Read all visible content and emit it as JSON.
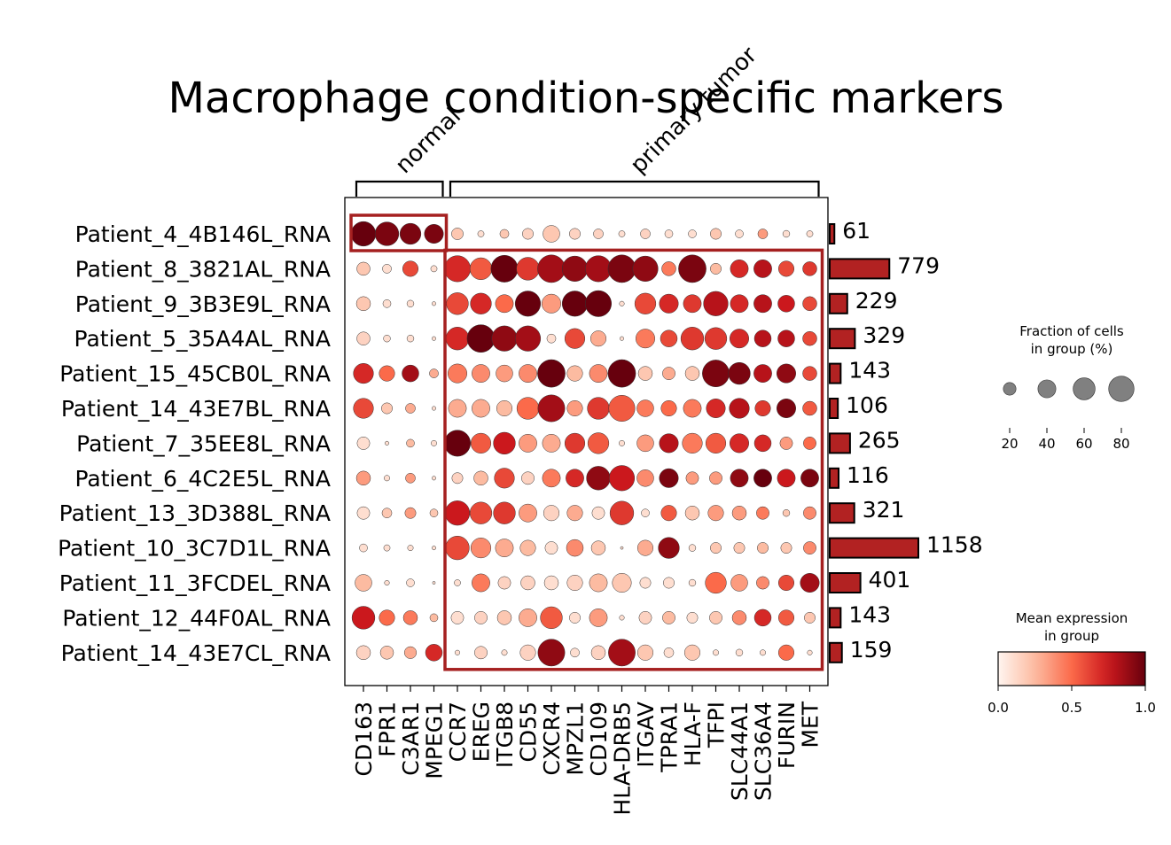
{
  "chart_data": {
    "type": "dotplot",
    "title": "Macrophage condition-specific markers",
    "groups": [
      {
        "label": "normal",
        "genes": [
          "CD163",
          "FPR1",
          "C3AR1",
          "MPEG1"
        ]
      },
      {
        "label": "primary tumor",
        "genes": [
          "CCR7",
          "EREG",
          "ITGB8",
          "CD55",
          "CXCR4",
          "MPZL1",
          "CD109",
          "HLA-DRB5",
          "ITGAV",
          "TPRA1",
          "HLA-F",
          "TFPI",
          "SLC44A1",
          "SLC36A4",
          "FURIN",
          "MET"
        ]
      }
    ],
    "genes": [
      "CD163",
      "FPR1",
      "C3AR1",
      "MPEG1",
      "CCR7",
      "EREG",
      "ITGB8",
      "CD55",
      "CXCR4",
      "MPZL1",
      "CD109",
      "HLA-DRB5",
      "ITGAV",
      "TPRA1",
      "HLA-F",
      "TFPI",
      "SLC44A1",
      "SLC36A4",
      "FURIN",
      "MET"
    ],
    "patients": [
      "Patient_4_4B146L_RNA",
      "Patient_8_3821AL_RNA",
      "Patient_9_3B3E9L_RNA",
      "Patient_5_35A4AL_RNA",
      "Patient_15_45CB0L_RNA",
      "Patient_14_43E7BL_RNA",
      "Patient_7_35EE8L_RNA",
      "Patient_6_4C2E5L_RNA",
      "Patient_13_3D388L_RNA",
      "Patient_10_3C7D1L_RNA",
      "Patient_11_3FCDEL_RNA",
      "Patient_12_44F0AL_RNA",
      "Patient_14_43E7CL_RNA"
    ],
    "cell_counts": [
      61,
      779,
      229,
      329,
      143,
      106,
      265,
      116,
      321,
      1158,
      401,
      143,
      159
    ],
    "fraction_pct": [
      [
        75,
        70,
        55,
        45,
        17,
        5,
        10,
        15,
        35,
        15,
        12,
        5,
        12,
        8,
        8,
        15,
        8,
        12,
        6,
        5
      ],
      [
        22,
        10,
        30,
        5,
        85,
        60,
        90,
        65,
        95,
        80,
        85,
        95,
        80,
        25,
        95,
        15,
        40,
        40,
        30,
        25
      ],
      [
        25,
        8,
        6,
        2,
        60,
        55,
        40,
        80,
        45,
        80,
        85,
        3,
        55,
        45,
        40,
        75,
        40,
        40,
        35,
        25
      ],
      [
        22,
        6,
        6,
        2,
        65,
        95,
        80,
        80,
        10,
        50,
        30,
        2,
        45,
        35,
        65,
        60,
        45,
        35,
        35,
        25
      ],
      [
        50,
        30,
        35,
        10,
        45,
        40,
        35,
        40,
        95,
        30,
        40,
        95,
        25,
        20,
        25,
        90,
        60,
        40,
        45,
        25
      ],
      [
        50,
        15,
        12,
        2,
        40,
        40,
        30,
        60,
        90,
        30,
        60,
        85,
        35,
        30,
        40,
        45,
        50,
        30,
        45,
        25
      ],
      [
        20,
        2,
        8,
        4,
        85,
        50,
        60,
        40,
        40,
        50,
        55,
        4,
        35,
        45,
        50,
        50,
        45,
        35,
        20,
        20
      ],
      [
        25,
        4,
        12,
        2,
        15,
        25,
        50,
        20,
        40,
        40,
        70,
        80,
        35,
        45,
        20,
        20,
        40,
        40,
        40,
        40
      ],
      [
        20,
        12,
        15,
        8,
        75,
        60,
        60,
        40,
        30,
        30,
        20,
        70,
        8,
        30,
        25,
        30,
        25,
        20,
        6,
        20
      ],
      [
        8,
        5,
        4,
        2,
        70,
        50,
        40,
        30,
        20,
        35,
        25,
        1,
        30,
        55,
        6,
        15,
        15,
        15,
        15,
        20
      ],
      [
        35,
        3,
        8,
        1,
        5,
        40,
        20,
        25,
        25,
        30,
        40,
        45,
        15,
        15,
        6,
        55,
        35,
        20,
        30,
        45
      ],
      [
        65,
        30,
        25,
        8,
        20,
        20,
        25,
        40,
        60,
        15,
        40,
        3,
        20,
        20,
        15,
        20,
        25,
        35,
        30,
        15
      ],
      [
        25,
        22,
        18,
        35,
        3,
        20,
        4,
        30,
        90,
        10,
        25,
        90,
        30,
        12,
        30,
        4,
        6,
        4,
        30,
        3
      ]
    ],
    "mean_expression": [
      [
        1.0,
        0.95,
        0.95,
        0.95,
        0.2,
        0.1,
        0.2,
        0.15,
        0.2,
        0.15,
        0.15,
        0.1,
        0.15,
        0.1,
        0.1,
        0.2,
        0.1,
        0.35,
        0.1,
        0.1
      ],
      [
        0.2,
        0.1,
        0.6,
        0.1,
        0.7,
        0.55,
        1.0,
        0.65,
        0.85,
        0.9,
        0.85,
        0.95,
        0.9,
        0.45,
        0.95,
        0.25,
        0.7,
        0.8,
        0.6,
        0.65
      ],
      [
        0.2,
        0.1,
        0.1,
        0.1,
        0.6,
        0.7,
        0.5,
        1.0,
        0.35,
        1.0,
        1.0,
        0.1,
        0.6,
        0.7,
        0.65,
        0.8,
        0.7,
        0.8,
        0.75,
        0.6
      ],
      [
        0.15,
        0.1,
        0.1,
        0.1,
        0.7,
        1.0,
        0.9,
        0.85,
        0.1,
        0.6,
        0.3,
        0.1,
        0.45,
        0.6,
        0.65,
        0.65,
        0.7,
        0.8,
        0.8,
        0.6
      ],
      [
        0.7,
        0.5,
        0.85,
        0.3,
        0.45,
        0.4,
        0.35,
        0.4,
        1.0,
        0.25,
        0.4,
        1.0,
        0.2,
        0.3,
        0.2,
        0.95,
        0.95,
        0.8,
        0.9,
        0.6
      ],
      [
        0.6,
        0.2,
        0.3,
        0.1,
        0.3,
        0.3,
        0.25,
        0.5,
        0.85,
        0.35,
        0.65,
        0.55,
        0.45,
        0.5,
        0.45,
        0.7,
        0.8,
        0.65,
        0.95,
        0.55
      ],
      [
        0.1,
        0.1,
        0.25,
        0.1,
        1.0,
        0.55,
        0.75,
        0.35,
        0.3,
        0.65,
        0.55,
        0.1,
        0.35,
        0.8,
        0.45,
        0.55,
        0.7,
        0.7,
        0.35,
        0.5
      ],
      [
        0.35,
        0.1,
        0.35,
        0.1,
        0.15,
        0.25,
        0.6,
        0.15,
        0.45,
        0.7,
        0.9,
        0.75,
        0.4,
        0.95,
        0.35,
        0.35,
        0.9,
        1.0,
        0.75,
        0.95
      ],
      [
        0.1,
        0.2,
        0.35,
        0.2,
        0.75,
        0.6,
        0.65,
        0.35,
        0.15,
        0.3,
        0.1,
        0.65,
        0.1,
        0.55,
        0.2,
        0.35,
        0.35,
        0.45,
        0.2,
        0.4
      ],
      [
        0.1,
        0.1,
        0.1,
        0.1,
        0.6,
        0.4,
        0.3,
        0.25,
        0.1,
        0.4,
        0.2,
        0.1,
        0.3,
        0.9,
        0.1,
        0.2,
        0.2,
        0.25,
        0.2,
        0.4
      ],
      [
        0.25,
        0.1,
        0.1,
        0.1,
        0.1,
        0.45,
        0.15,
        0.15,
        0.1,
        0.15,
        0.25,
        0.2,
        0.1,
        0.1,
        0.1,
        0.5,
        0.35,
        0.4,
        0.6,
        0.85
      ],
      [
        0.75,
        0.5,
        0.45,
        0.25,
        0.1,
        0.15,
        0.2,
        0.3,
        0.55,
        0.1,
        0.35,
        0.1,
        0.15,
        0.25,
        0.1,
        0.2,
        0.4,
        0.7,
        0.55,
        0.2
      ],
      [
        0.15,
        0.2,
        0.3,
        0.7,
        0.1,
        0.15,
        0.1,
        0.15,
        0.9,
        0.1,
        0.15,
        0.85,
        0.2,
        0.1,
        0.2,
        0.1,
        0.1,
        0.1,
        0.5,
        0.1
      ]
    ],
    "highlight_boxes": [
      {
        "group": "normal",
        "patients": [
          "Patient_4_4B146L_RNA"
        ],
        "genes": [
          "CD163",
          "FPR1",
          "C3AR1",
          "MPEG1"
        ]
      },
      {
        "group": "primary tumor",
        "patients": [
          "Patient_8_3821AL_RNA",
          "Patient_14_43E7CL_RNA"
        ],
        "genes": [
          "CCR7",
          "MET"
        ]
      }
    ],
    "size_legend": {
      "title_lines": [
        "Fraction of cells",
        "in group (%)"
      ],
      "values": [
        20,
        40,
        60,
        80
      ],
      "tick_labels": [
        "20",
        "40",
        "60",
        "80"
      ]
    },
    "color_legend": {
      "title_lines": [
        "Mean expression",
        "in group"
      ],
      "range": [
        0.0,
        1.0
      ],
      "ticks": [
        0.0,
        0.5,
        1.0
      ],
      "tick_labels": [
        "0.0",
        "0.5",
        "1.0"
      ],
      "colormap": "Reds"
    },
    "bar_color": "#b22222",
    "box_color": "#a52020"
  }
}
